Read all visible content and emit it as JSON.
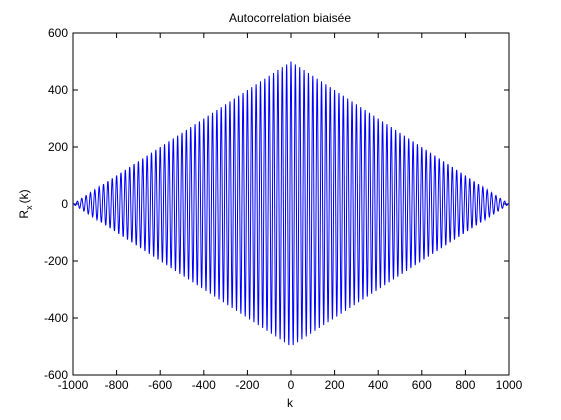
{
  "chart_data": {
    "type": "line",
    "title": "Autocorrelation biaisée",
    "xlabel": "k",
    "ylabel": {
      "main": "R",
      "sub": "x",
      "suffix": "(k)"
    },
    "xlim": [
      -1000,
      1000
    ],
    "ylim": [
      -600,
      600
    ],
    "xticks": [
      -1000,
      -800,
      -600,
      -400,
      -200,
      0,
      200,
      400,
      600,
      800,
      1000
    ],
    "yticks": [
      -600,
      -400,
      -200,
      0,
      200,
      400,
      600
    ],
    "xtick_labels": [
      "-1000",
      "-800",
      "-600",
      "-400",
      "-200",
      "0",
      "200",
      "400",
      "600",
      "800",
      "1000"
    ],
    "ytick_labels": [
      "-600",
      "-400",
      "-200",
      "0",
      "200",
      "400",
      "600"
    ],
    "grid": false,
    "line_color": "#0000ff",
    "series": [
      {
        "peak_value": 500,
        "period_k": 20,
        "k_start": -1000,
        "k_end": 1000,
        "envelope": "triangular (biased): R(k) = 500·(1 − |k|/1000)·cos(2πk/20)"
      }
    ]
  }
}
